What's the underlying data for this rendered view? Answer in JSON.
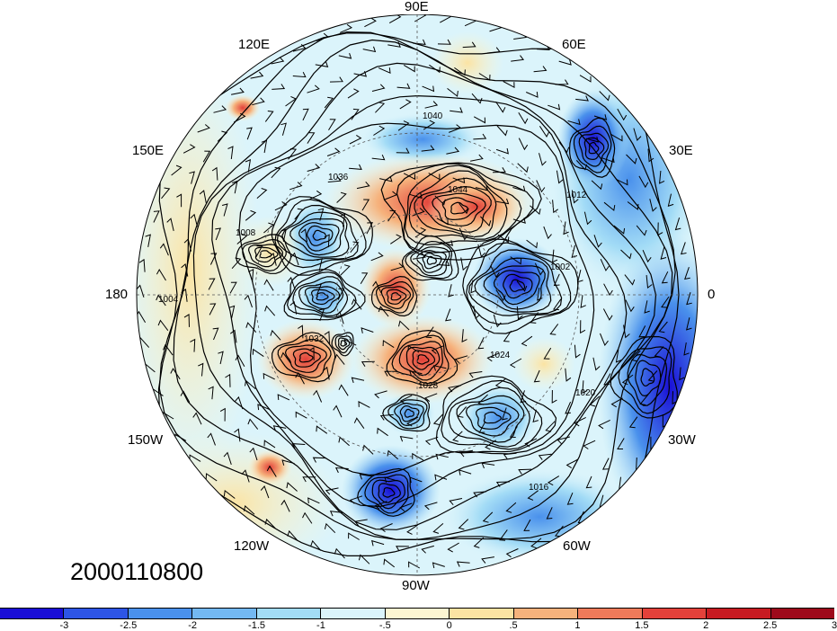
{
  "map": {
    "projection": "polar-stereographic-north",
    "field_fill": "standardized anomaly (shaded)",
    "contours": "sea level pressure (hPa)",
    "vectors": "wind barbs",
    "timestamp": "2000110800",
    "longitude_labels": [
      {
        "id": "90e",
        "text": "90E"
      },
      {
        "id": "120e",
        "text": "120E"
      },
      {
        "id": "60e",
        "text": "60E"
      },
      {
        "id": "150e",
        "text": "150E"
      },
      {
        "id": "30e",
        "text": "30E"
      },
      {
        "id": "180",
        "text": "180"
      },
      {
        "id": "0",
        "text": "0"
      },
      {
        "id": "150w",
        "text": "150W"
      },
      {
        "id": "30w",
        "text": "30W"
      },
      {
        "id": "120w",
        "text": "120W"
      },
      {
        "id": "60w",
        "text": "60W"
      },
      {
        "id": "90w",
        "text": "90W"
      }
    ],
    "contour_labels": [
      "1044",
      "1040",
      "1036",
      "1032",
      "1028",
      "1024",
      "1020",
      "1016",
      "1012",
      "1008",
      "1004",
      "1002"
    ]
  },
  "colorbar": {
    "colors": [
      "#1a0fd6",
      "#2d55e6",
      "#4a91ec",
      "#73b8f2",
      "#a3dcf6",
      "#dbf4fb",
      "#fdf6d2",
      "#fbe3a3",
      "#f6b27c",
      "#ee7a5a",
      "#e3413a",
      "#c71b22",
      "#9e0a1b"
    ],
    "labels": [
      "-3",
      "-2.5",
      "-2",
      "-1.5",
      "-1",
      "-.5",
      "0",
      ".5",
      "1",
      "1.5",
      "2",
      "2.5",
      "3"
    ]
  }
}
